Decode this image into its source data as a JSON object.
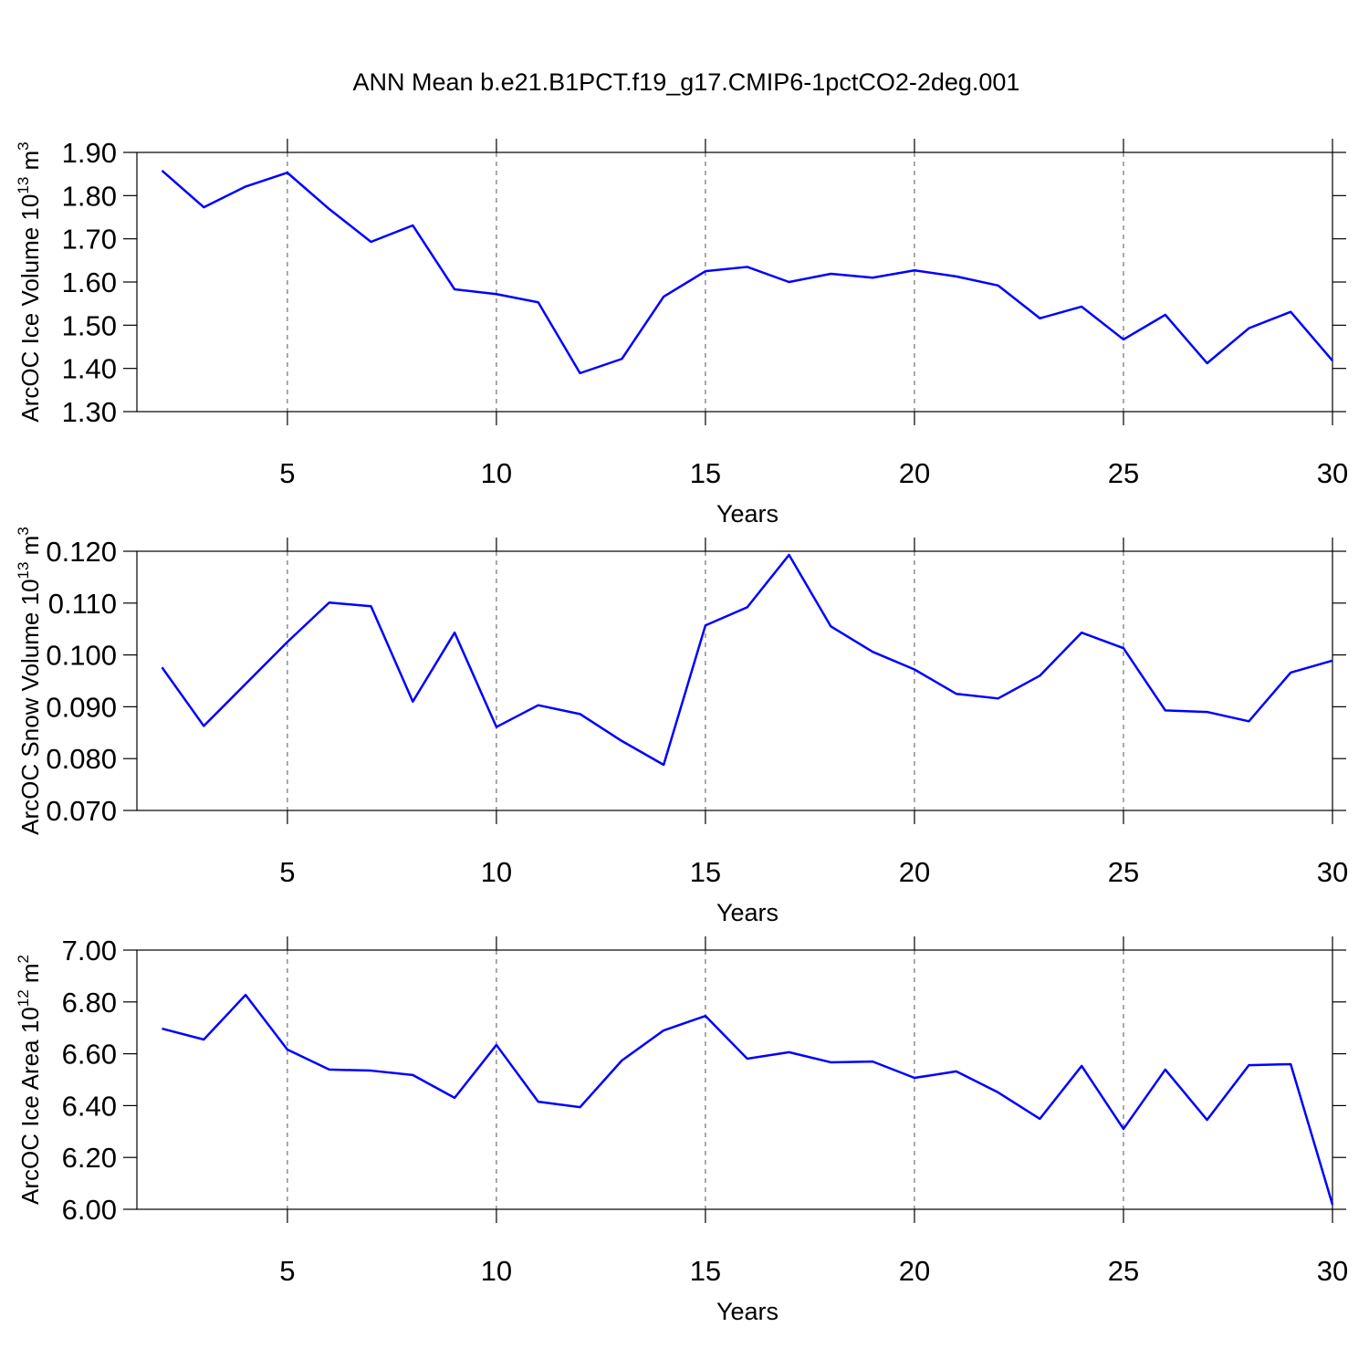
{
  "chart_data": [
    {
      "type": "line",
      "title": "ANN Mean b.e21.B1PCT.f19_g17.CMIP6-1pctCO2-2deg.001",
      "ylabel_parts": [
        "ArcOC Ice Volume 10",
        "13",
        " m",
        "3"
      ],
      "xlabel": "Years",
      "x": [
        2,
        3,
        4,
        5,
        6,
        7,
        8,
        9,
        10,
        11,
        12,
        13,
        14,
        15,
        16,
        17,
        18,
        19,
        20,
        21,
        22,
        23,
        24,
        25,
        26,
        27,
        28,
        29,
        30
      ],
      "series": [
        {
          "color": "#0000ff",
          "values": [
            1.858,
            1.773,
            1.821,
            1.853,
            1.769,
            1.693,
            1.731,
            1.583,
            1.572,
            1.553,
            1.389,
            1.422,
            1.566,
            1.625,
            1.635,
            1.6,
            1.619,
            1.61,
            1.627,
            1.613,
            1.592,
            1.516,
            1.543,
            1.467,
            1.524,
            1.412,
            1.493,
            1.531,
            1.418
          ]
        }
      ],
      "xlim": [
        1.4,
        30
      ],
      "xticks": [
        5,
        10,
        15,
        20,
        25,
        30
      ],
      "xgrid": true,
      "ylim": [
        1.3,
        1.9
      ],
      "yticks": [
        {
          "value": 1.3,
          "label": "1.30"
        },
        {
          "value": 1.4,
          "label": "1.40"
        },
        {
          "value": 1.5,
          "label": "1.50"
        },
        {
          "value": 1.6,
          "label": "1.60"
        },
        {
          "value": 1.7,
          "label": "1.70"
        },
        {
          "value": 1.8,
          "label": "1.80"
        },
        {
          "value": 1.9,
          "label": "1.90"
        }
      ]
    },
    {
      "type": "line",
      "ylabel_parts": [
        "ArcOC Snow Volume 10",
        "13",
        " m",
        "3"
      ],
      "xlabel": "Years",
      "x": [
        2,
        3,
        4,
        5,
        6,
        7,
        8,
        9,
        10,
        11,
        12,
        13,
        14,
        15,
        16,
        17,
        18,
        19,
        20,
        21,
        22,
        23,
        24,
        25,
        26,
        27,
        28,
        29,
        30
      ],
      "series": [
        {
          "color": "#0000ff",
          "values": [
            0.0976,
            0.0863,
            0.0944,
            0.1025,
            0.1101,
            0.1094,
            0.091,
            0.1043,
            0.0861,
            0.0903,
            0.0886,
            0.0834,
            0.0788,
            0.1057,
            0.1092,
            0.1193,
            0.1055,
            0.1006,
            0.0972,
            0.0925,
            0.0916,
            0.096,
            0.1043,
            0.1013,
            0.0893,
            0.089,
            0.0872,
            0.0966,
            0.0989
          ]
        }
      ],
      "xlim": [
        1.4,
        30
      ],
      "xticks": [
        5,
        10,
        15,
        20,
        25,
        30
      ],
      "xgrid": true,
      "ylim": [
        0.07,
        0.12
      ],
      "yticks": [
        {
          "value": 0.07,
          "label": "0.070"
        },
        {
          "value": 0.08,
          "label": "0.080"
        },
        {
          "value": 0.09,
          "label": "0.090"
        },
        {
          "value": 0.1,
          "label": "0.100"
        },
        {
          "value": 0.11,
          "label": "0.110"
        },
        {
          "value": 0.12,
          "label": "0.120"
        }
      ]
    },
    {
      "type": "line",
      "ylabel_parts": [
        "ArcOC Ice Area 10",
        "12",
        " m",
        "2"
      ],
      "xlabel": "Years",
      "x": [
        2,
        3,
        4,
        5,
        6,
        7,
        8,
        9,
        10,
        11,
        12,
        13,
        14,
        15,
        16,
        17,
        18,
        19,
        20,
        21,
        22,
        23,
        24,
        25,
        26,
        27,
        28,
        29,
        30
      ],
      "series": [
        {
          "color": "#0000ff",
          "values": [
            6.697,
            6.655,
            6.827,
            6.616,
            6.539,
            6.535,
            6.518,
            6.43,
            6.634,
            6.415,
            6.394,
            6.574,
            6.69,
            6.746,
            6.581,
            6.606,
            6.567,
            6.57,
            6.507,
            6.532,
            6.451,
            6.349,
            6.553,
            6.31,
            6.539,
            6.345,
            6.556,
            6.56,
            6.018
          ]
        }
      ],
      "xlim": [
        1.4,
        30
      ],
      "xticks": [
        5,
        10,
        15,
        20,
        25,
        30
      ],
      "xgrid": true,
      "ylim": [
        6.0,
        7.0
      ],
      "yticks": [
        {
          "value": 6.0,
          "label": "6.00"
        },
        {
          "value": 6.2,
          "label": "6.20"
        },
        {
          "value": 6.4,
          "label": "6.40"
        },
        {
          "value": 6.6,
          "label": "6.60"
        },
        {
          "value": 6.8,
          "label": "6.80"
        },
        {
          "value": 7.0,
          "label": "7.00"
        }
      ]
    }
  ]
}
